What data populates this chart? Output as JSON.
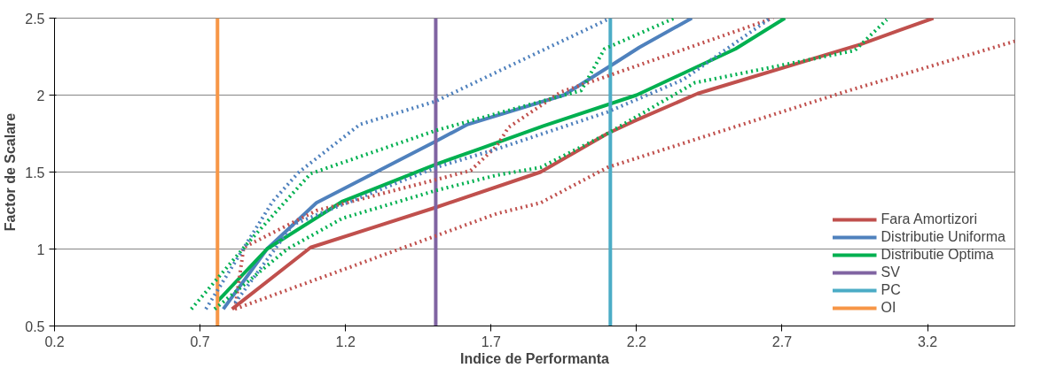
{
  "chart_data": {
    "type": "line",
    "xlabel": "Indice de Performanta",
    "ylabel": "Factor de Scalare",
    "xlim": [
      0.2,
      3.5
    ],
    "ylim": [
      0.5,
      2.5
    ],
    "xticks": [
      0.2,
      0.7,
      1.2,
      1.7,
      2.2,
      2.7,
      3.2
    ],
    "yticks": [
      0.5,
      1,
      1.5,
      2,
      2.5
    ],
    "grid": "y",
    "legend": "bottom right",
    "line_style": "solid",
    "series": [
      {
        "name": "Fara Amortizori",
        "color": "#c0504d",
        "x": [
          0.81,
          1.08,
          1.51,
          1.87,
          2.1,
          2.19,
          2.41,
          2.97,
          3.22
        ],
        "values": [
          0.61,
          1.01,
          1.27,
          1.5,
          1.75,
          1.83,
          2.01,
          2.33,
          2.5
        ]
      },
      {
        "name": "Distributie Uniforma",
        "color": "#4f81bd",
        "x": [
          0.78,
          0.93,
          1.1,
          1.51,
          1.62,
          1.95,
          2.11,
          2.21,
          2.39
        ],
        "values": [
          0.61,
          1.0,
          1.3,
          1.7,
          1.81,
          2.0,
          2.19,
          2.31,
          2.5
        ]
      },
      {
        "name": "Distributie Optima",
        "color": "#00b050",
        "x": [
          0.76,
          0.93,
          1.19,
          1.51,
          1.66,
          1.88,
          2.2,
          2.54,
          2.71
        ],
        "values": [
          0.66,
          1.0,
          1.31,
          1.55,
          1.65,
          1.8,
          2.0,
          2.3,
          2.5
        ]
      },
      {
        "name": "SV",
        "color": "#8064a2",
        "x": [
          1.51,
          1.51
        ],
        "values": [
          0.5,
          2.5
        ]
      },
      {
        "name": "PC",
        "color": "#4bacc6",
        "x": [
          2.11,
          2.11
        ],
        "values": [
          0.5,
          2.5
        ]
      },
      {
        "name": "OI",
        "color": "#f79646",
        "x": [
          0.76,
          0.76
        ],
        "values": [
          0.5,
          2.5
        ]
      },
      {
        "color": "#c0504d",
        "line_style": "dotted",
        "x": [
          0.82,
          1.72,
          1.87,
          1.92,
          2.1,
          2.93,
          3.5
        ],
        "values": [
          0.61,
          1.23,
          1.3,
          1.35,
          1.53,
          2.03,
          2.35
        ]
      },
      {
        "color": "#c0504d",
        "line_style": "dotted",
        "x": [
          0.82,
          0.85,
          1.1,
          1.51,
          1.63,
          1.72,
          1.76,
          1.94,
          2.11,
          2.67
        ],
        "values": [
          0.61,
          1.01,
          1.25,
          1.45,
          1.51,
          1.67,
          1.79,
          2.02,
          2.13,
          2.5
        ]
      },
      {
        "color": "#4f81bd",
        "line_style": "dotted",
        "x": [
          0.72,
          0.95,
          1.04,
          1.25,
          1.51,
          1.72,
          2.11
        ],
        "values": [
          0.61,
          1.31,
          1.5,
          1.81,
          1.96,
          2.15,
          2.5
        ]
      },
      {
        "color": "#4f81bd",
        "line_style": "dotted",
        "x": [
          0.82,
          1.02,
          1.51,
          1.72,
          2.1,
          2.36,
          2.51,
          2.66
        ],
        "values": [
          0.65,
          1.16,
          1.53,
          1.65,
          1.89,
          2.1,
          2.3,
          2.5
        ]
      },
      {
        "color": "#00b050",
        "line_style": "dotted",
        "x": [
          0.67,
          0.86,
          1.08,
          1.51,
          1.72,
          2.01,
          2.09,
          2.33
        ],
        "values": [
          0.61,
          1.03,
          1.49,
          1.77,
          1.88,
          2.03,
          2.3,
          2.5
        ]
      },
      {
        "color": "#00b050",
        "line_style": "dotted",
        "x": [
          0.75,
          1.0,
          1.19,
          1.51,
          1.72,
          1.87,
          2.1,
          2.4,
          2.95,
          3.06
        ],
        "values": [
          0.61,
          1.0,
          1.2,
          1.38,
          1.48,
          1.53,
          1.75,
          2.08,
          2.29,
          2.49
        ]
      }
    ]
  }
}
